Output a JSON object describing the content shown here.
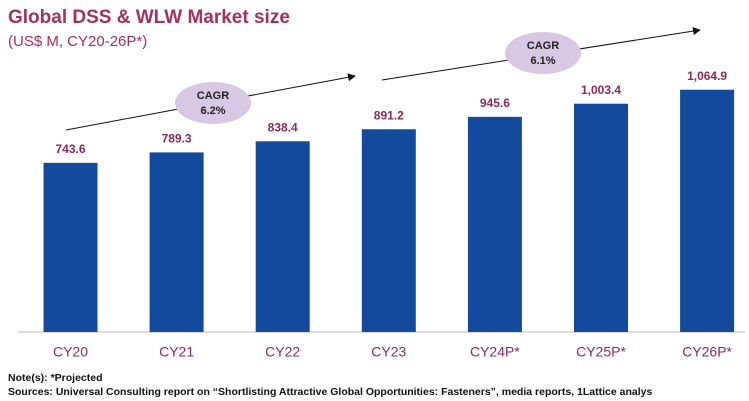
{
  "chart_data": {
    "type": "bar",
    "title": "Global DSS & WLW Market size",
    "subtitle": "(US$ M, CY20-26P*)",
    "categories": [
      "CY20",
      "CY21",
      "CY22",
      "CY23",
      "CY24P*",
      "CY25P*",
      "CY26P*"
    ],
    "values": [
      743.6,
      789.3,
      838.4,
      891.2,
      945.6,
      1003.4,
      1064.9
    ],
    "value_labels": [
      "743.6",
      "789.3",
      "838.4",
      "891.2",
      "945.6",
      "1,003.4",
      "1,064.9"
    ],
    "color": "#134a9c",
    "ylim": [
      0,
      1400
    ],
    "annotations": [
      {
        "title": "CAGR",
        "text": "6.2%"
      },
      {
        "title": "CAGR",
        "text": "6.1%"
      }
    ],
    "notes": "Note(s): *Projected",
    "sources": "Sources:  Universal Consulting report on “Shortlisting Attractive Global Opportunities: Fasteners”, media reports, 1Lattice analys"
  }
}
